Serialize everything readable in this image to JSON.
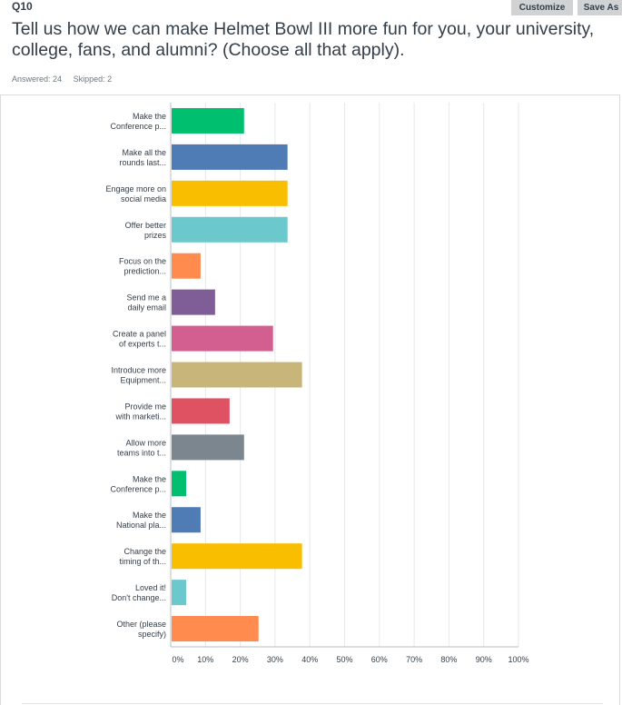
{
  "question": {
    "number": "Q10",
    "title": "Tell us how we can make Helmet Bowl III more fun for you, your university, college, fans, and alumni? (Choose all that apply).",
    "answered": "Answered: 24",
    "skipped": "Skipped: 2"
  },
  "toolbar": {
    "customize_label": "Customize",
    "save_label": "Save As"
  },
  "chart_data": {
    "type": "bar",
    "orientation": "horizontal",
    "categories": [
      [
        "Make the",
        "Conference p..."
      ],
      [
        "Make all the",
        "rounds last..."
      ],
      [
        "Engage more on",
        "social media"
      ],
      [
        "Offer better",
        "prizes"
      ],
      [
        "Focus on the",
        "prediction..."
      ],
      [
        "Send me a",
        "daily email"
      ],
      [
        "Create a panel",
        "of experts t..."
      ],
      [
        "Introduce more",
        "Equipment..."
      ],
      [
        "Provide me",
        "with marketi..."
      ],
      [
        "Allow more",
        "teams into t..."
      ],
      [
        "Make the",
        "Conference p..."
      ],
      [
        "Make the",
        "National pla..."
      ],
      [
        "Change the",
        "timing of th..."
      ],
      [
        "Loved it!",
        "Don't change..."
      ],
      [
        "Other (please",
        "specify)"
      ]
    ],
    "values": [
      20.83,
      33.33,
      33.33,
      33.33,
      8.33,
      12.5,
      29.17,
      37.5,
      16.67,
      20.83,
      4.17,
      8.33,
      37.5,
      4.17,
      25.0
    ],
    "colors": [
      "#00bf6f",
      "#507cb6",
      "#f9be00",
      "#6bc8cd",
      "#ff8b4f",
      "#7f5e98",
      "#d25f90",
      "#c8b579",
      "#de5261",
      "#7b868e",
      "#00bf6f",
      "#507cb6",
      "#f9be00",
      "#6bc8cd",
      "#ff8b4f"
    ],
    "xticks": [
      "0%",
      "10%",
      "20%",
      "30%",
      "40%",
      "50%",
      "60%",
      "70%",
      "80%",
      "90%",
      "100%"
    ],
    "xlim": [
      0,
      100
    ],
    "grid": true,
    "colors_meta": {
      "grid": "#e6e8e9",
      "axis": "#b9bdc0"
    }
  }
}
